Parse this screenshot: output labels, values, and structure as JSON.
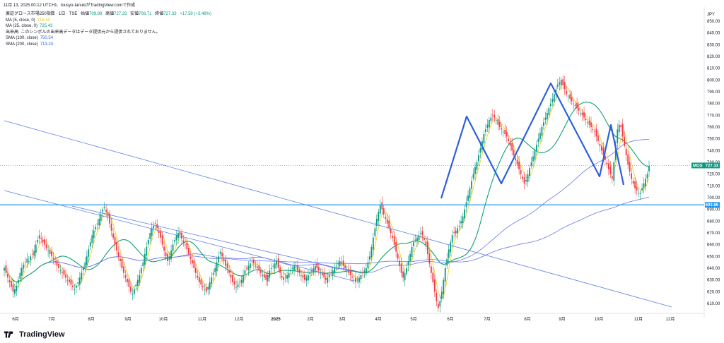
{
  "header": {
    "snapshot": "11月 13, 2025 00:12 UTC+9、tousyo-tanukiがTradingView.comで作成"
  },
  "legend": {
    "symbol": "東証グロース市場250指数 · 1日 · TSE",
    "ohlc": [
      {
        "k": "始値",
        "v": "709.89"
      },
      {
        "k": "高値",
        "v": "727.33"
      },
      {
        "k": "安値",
        "v": "708.71"
      },
      {
        "k": "終値",
        "v": "727.33"
      },
      {
        "k": "",
        "v": "+17.59 (+2.48%)"
      }
    ],
    "indicators": [
      {
        "label": "MA (5, close, 0)",
        "value": "716.50",
        "color": "#e6d21e"
      },
      {
        "label": "MA (25, close, 0)",
        "value": "725.43",
        "color": "#089981"
      },
      {
        "label": "出来高: このシンボルの出来高データはデータ提供元から提供されておりません。",
        "value": "",
        "color": "#131722"
      },
      {
        "label": "SMA (100, close)",
        "value": "750.54",
        "color": "#2962ff"
      },
      {
        "label": "SMA (200, close)",
        "value": "713.24",
        "color": "#2962ff"
      }
    ]
  },
  "footer": {
    "brand": "TradingView"
  },
  "colors": {
    "up": "#089981",
    "down": "#f23645",
    "ma5": "#f2d22a",
    "ma25": "#0fa070",
    "sma": "#6a72e8",
    "pattern": "#2f5fe0",
    "trend": "#5b7fe6",
    "hline": "#2196f3"
  },
  "chart_data": {
    "type": "candlestick",
    "currency": "JPY",
    "y_ticks": [
      610,
      620,
      630,
      640,
      650,
      660,
      670,
      680,
      690,
      700,
      710,
      720,
      730,
      740,
      750,
      760,
      770,
      780,
      790,
      800,
      810,
      820,
      830,
      840,
      850
    ],
    "ylim": [
      604,
      856
    ],
    "x_ticks": [
      "6月",
      "7月",
      "8月",
      "9月",
      "10月",
      "11月",
      "12月",
      "2025",
      "2月",
      "3月",
      "4月",
      "5月",
      "6月",
      "7月",
      "8月",
      "9月",
      "10月",
      "11月",
      "12月"
    ],
    "symbol_label": "MOS",
    "last_price": "727.33",
    "hline_label": "693.86",
    "hline_value": 693.86,
    "series": [
      {
        "name": "MA (5, close, 0)",
        "value": "716.50"
      },
      {
        "name": "MA (25, close, 0)",
        "value": "725.43"
      },
      {
        "name": "SMA (100, close)",
        "value": "750.54"
      },
      {
        "name": "SMA (200, close)",
        "value": "713.24"
      }
    ],
    "closes": [
      640,
      636,
      632,
      628,
      624,
      620,
      622,
      625,
      630,
      636,
      640,
      643,
      645,
      648,
      646,
      650,
      652,
      655,
      660,
      664,
      668,
      665,
      662,
      660,
      657,
      655,
      652,
      650,
      648,
      645,
      642,
      640,
      638,
      636,
      634,
      632,
      630,
      628,
      626,
      624,
      622,
      625,
      628,
      632,
      636,
      640,
      645,
      650,
      656,
      662,
      668,
      672,
      675,
      678,
      682,
      686,
      690,
      692,
      688,
      684,
      678,
      672,
      666,
      660,
      655,
      650,
      646,
      640,
      636,
      632,
      628,
      624,
      620,
      618,
      622,
      626,
      630,
      634,
      640,
      645,
      652,
      658,
      664,
      670,
      674,
      676,
      678,
      674,
      670,
      666,
      660,
      655,
      650,
      646,
      650,
      655,
      660,
      664,
      668,
      670,
      668,
      665,
      662,
      660,
      656,
      652,
      648,
      644,
      640,
      636,
      632,
      628,
      626,
      624,
      622,
      620,
      624,
      628,
      632,
      636,
      640,
      645,
      650,
      654,
      650,
      646,
      642,
      640,
      636,
      632,
      628,
      626,
      624,
      626,
      628,
      630,
      634,
      638,
      640,
      642,
      644,
      646,
      644,
      642,
      640,
      638,
      636,
      634,
      632,
      630,
      634,
      638,
      640,
      642,
      644,
      646,
      640,
      636,
      632,
      630,
      632,
      634,
      636,
      638,
      640,
      642,
      640,
      638,
      636,
      634,
      632,
      630,
      632,
      634,
      636,
      638,
      640,
      642,
      640,
      638,
      636,
      634,
      632,
      630,
      632,
      634,
      636,
      638,
      640,
      642,
      644,
      646,
      644,
      642,
      640,
      638,
      636,
      634,
      632,
      630,
      628,
      630,
      632,
      634,
      636,
      638,
      640,
      645,
      650,
      658,
      666,
      674,
      682,
      688,
      694,
      690,
      686,
      682,
      678,
      674,
      670,
      666,
      660,
      654,
      648,
      642,
      636,
      632,
      636,
      640,
      646,
      652,
      658,
      662,
      664,
      666,
      668,
      670,
      668,
      664,
      660,
      652,
      644,
      636,
      628,
      620,
      612,
      606,
      612,
      620,
      630,
      640,
      648,
      656,
      662,
      668,
      670,
      672,
      674,
      676,
      680,
      684,
      690,
      696,
      702,
      708,
      714,
      720,
      726,
      730,
      736,
      742,
      748,
      754,
      758,
      762,
      766,
      768,
      770,
      768,
      766,
      762,
      760,
      758,
      756,
      754,
      752,
      748,
      744,
      740,
      736,
      732,
      728,
      724,
      720,
      716,
      712,
      715,
      720,
      725,
      730,
      735,
      740,
      745,
      750,
      755,
      760,
      764,
      768,
      772,
      776,
      780,
      784,
      788,
      792,
      796,
      798,
      800,
      796,
      792,
      788,
      786,
      784,
      782,
      780,
      778,
      776,
      774,
      772,
      770,
      768,
      766,
      764,
      762,
      760,
      758,
      756,
      752,
      748,
      744,
      740,
      736,
      732,
      728,
      724,
      720,
      716,
      730,
      745,
      758,
      762,
      760,
      752,
      744,
      736,
      728,
      722,
      716,
      712,
      708,
      706,
      704,
      704,
      708,
      712,
      716,
      720,
      727
    ]
  }
}
